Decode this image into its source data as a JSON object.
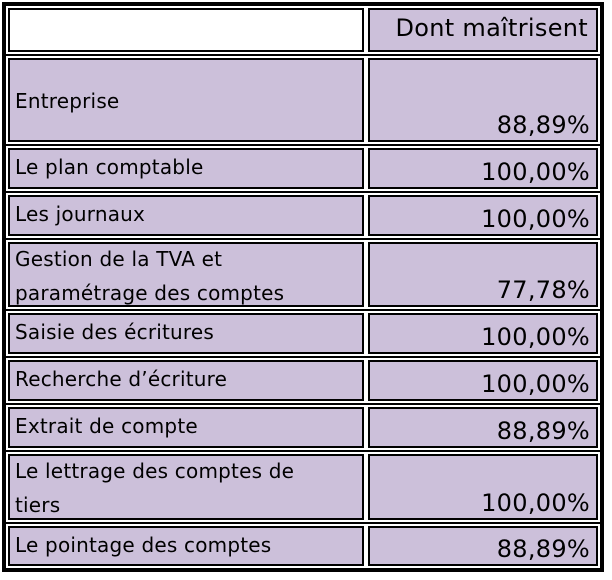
{
  "header": {
    "column_title": "Dont maîtrisent"
  },
  "rows": [
    {
      "label": "Entreprise",
      "value": "88,89%"
    },
    {
      "label": "Le plan comptable",
      "value": "100,00%"
    },
    {
      "label": "Les journaux",
      "value": "100,00%"
    },
    {
      "label": "Gestion de la TVA et paramétrage des comptes",
      "value": "77,78%"
    },
    {
      "label": "Saisie des écritures",
      "value": "100,00%"
    },
    {
      "label": "Recherche d’écriture",
      "value": "100,00%"
    },
    {
      "label": "Extrait de compte",
      "value": "88,89%"
    },
    {
      "label": "Le lettrage des comptes de tiers",
      "value": "100,00%"
    },
    {
      "label": "Le pointage des comptes",
      "value": "88,89%"
    }
  ]
}
